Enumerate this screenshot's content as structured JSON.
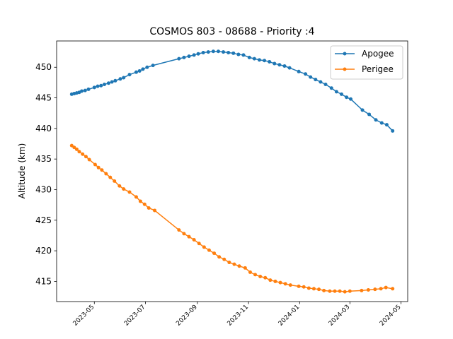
{
  "chart_data": {
    "type": "line",
    "title": "COSMOS 803 - 08688 - Priority :4",
    "xlabel": "",
    "ylabel": "Altitude (km)",
    "x_ticks": [
      "2023-05",
      "2023-07",
      "2023-09",
      "2023-11",
      "2024-01",
      "2024-03",
      "2024-05"
    ],
    "y_ticks": [
      415,
      420,
      425,
      430,
      435,
      440,
      445,
      450
    ],
    "xlim": [
      "2023-03-17",
      "2024-05-09"
    ],
    "ylim": [
      411.7,
      454.3
    ],
    "grid": false,
    "legend_position": "top-right",
    "series": [
      {
        "name": "Apogee",
        "color": "#1f77b4",
        "points": [
          [
            "2023-04-04",
            445.6
          ],
          [
            "2023-04-07",
            445.7
          ],
          [
            "2023-04-10",
            445.8
          ],
          [
            "2023-04-13",
            445.9
          ],
          [
            "2023-04-16",
            446.1
          ],
          [
            "2023-04-20",
            446.2
          ],
          [
            "2023-04-24",
            446.4
          ],
          [
            "2023-05-01",
            446.7
          ],
          [
            "2023-05-05",
            446.9
          ],
          [
            "2023-05-09",
            447.0
          ],
          [
            "2023-05-13",
            447.2
          ],
          [
            "2023-05-18",
            447.4
          ],
          [
            "2023-05-22",
            447.6
          ],
          [
            "2023-05-26",
            447.8
          ],
          [
            "2023-06-01",
            448.1
          ],
          [
            "2023-06-05",
            448.3
          ],
          [
            "2023-06-12",
            448.8
          ],
          [
            "2023-06-20",
            449.2
          ],
          [
            "2023-06-24",
            449.4
          ],
          [
            "2023-06-28",
            449.7
          ],
          [
            "2023-07-03",
            450.0
          ],
          [
            "2023-07-10",
            450.3
          ],
          [
            "2023-08-10",
            451.4
          ],
          [
            "2023-08-16",
            451.6
          ],
          [
            "2023-08-22",
            451.8
          ],
          [
            "2023-08-28",
            452.0
          ],
          [
            "2023-09-02",
            452.2
          ],
          [
            "2023-09-08",
            452.4
          ],
          [
            "2023-09-14",
            452.5
          ],
          [
            "2023-09-20",
            452.6
          ],
          [
            "2023-09-26",
            452.6
          ],
          [
            "2023-10-02",
            452.5
          ],
          [
            "2023-10-08",
            452.4
          ],
          [
            "2023-10-14",
            452.3
          ],
          [
            "2023-10-20",
            452.1
          ],
          [
            "2023-10-26",
            452.0
          ],
          [
            "2023-11-02",
            451.6
          ],
          [
            "2023-11-08",
            451.4
          ],
          [
            "2023-11-14",
            451.2
          ],
          [
            "2023-11-20",
            451.1
          ],
          [
            "2023-11-26",
            450.9
          ],
          [
            "2023-12-02",
            450.6
          ],
          [
            "2023-12-08",
            450.4
          ],
          [
            "2023-12-14",
            450.2
          ],
          [
            "2023-12-20",
            449.9
          ],
          [
            "2023-12-31",
            449.3
          ],
          [
            "2024-01-08",
            448.9
          ],
          [
            "2024-01-14",
            448.4
          ],
          [
            "2024-01-20",
            448.0
          ],
          [
            "2024-01-26",
            447.6
          ],
          [
            "2024-02-01",
            447.2
          ],
          [
            "2024-02-08",
            446.6
          ],
          [
            "2024-02-14",
            446.0
          ],
          [
            "2024-02-20",
            445.6
          ],
          [
            "2024-02-26",
            445.1
          ],
          [
            "2024-03-02",
            444.8
          ],
          [
            "2024-03-16",
            443.0
          ],
          [
            "2024-03-24",
            442.3
          ],
          [
            "2024-04-01",
            441.4
          ],
          [
            "2024-04-08",
            440.9
          ],
          [
            "2024-04-14",
            440.6
          ],
          [
            "2024-04-21",
            439.6
          ]
        ]
      },
      {
        "name": "Perigee",
        "color": "#ff7f0e",
        "points": [
          [
            "2023-04-04",
            437.2
          ],
          [
            "2023-04-07",
            436.9
          ],
          [
            "2023-04-10",
            436.6
          ],
          [
            "2023-04-13",
            436.2
          ],
          [
            "2023-04-17",
            435.8
          ],
          [
            "2023-04-21",
            435.4
          ],
          [
            "2023-04-25",
            434.9
          ],
          [
            "2023-05-02",
            434.1
          ],
          [
            "2023-05-06",
            433.6
          ],
          [
            "2023-05-10",
            433.2
          ],
          [
            "2023-05-15",
            432.6
          ],
          [
            "2023-05-20",
            432.0
          ],
          [
            "2023-05-25",
            431.4
          ],
          [
            "2023-05-31",
            430.6
          ],
          [
            "2023-06-05",
            430.1
          ],
          [
            "2023-06-12",
            429.6
          ],
          [
            "2023-06-20",
            428.8
          ],
          [
            "2023-06-25",
            428.1
          ],
          [
            "2023-06-30",
            427.6
          ],
          [
            "2023-07-05",
            427.0
          ],
          [
            "2023-07-12",
            426.6
          ],
          [
            "2023-08-10",
            423.4
          ],
          [
            "2023-08-16",
            422.8
          ],
          [
            "2023-08-22",
            422.3
          ],
          [
            "2023-08-28",
            421.8
          ],
          [
            "2023-09-03",
            421.2
          ],
          [
            "2023-09-09",
            420.6
          ],
          [
            "2023-09-15",
            420.1
          ],
          [
            "2023-09-21",
            419.6
          ],
          [
            "2023-09-27",
            419.0
          ],
          [
            "2023-10-03",
            418.6
          ],
          [
            "2023-10-09",
            418.1
          ],
          [
            "2023-10-15",
            417.8
          ],
          [
            "2023-10-21",
            417.5
          ],
          [
            "2023-10-28",
            417.2
          ],
          [
            "2023-11-03",
            416.5
          ],
          [
            "2023-11-09",
            416.1
          ],
          [
            "2023-11-15",
            415.8
          ],
          [
            "2023-11-21",
            415.6
          ],
          [
            "2023-11-27",
            415.2
          ],
          [
            "2023-12-03",
            415.0
          ],
          [
            "2023-12-09",
            414.8
          ],
          [
            "2023-12-15",
            414.6
          ],
          [
            "2023-12-21",
            414.4
          ],
          [
            "2023-12-31",
            414.2
          ],
          [
            "2024-01-06",
            414.1
          ],
          [
            "2024-01-12",
            413.9
          ],
          [
            "2024-01-18",
            413.8
          ],
          [
            "2024-01-24",
            413.7
          ],
          [
            "2024-01-30",
            413.5
          ],
          [
            "2024-02-06",
            413.4
          ],
          [
            "2024-02-12",
            413.4
          ],
          [
            "2024-02-18",
            413.4
          ],
          [
            "2024-02-24",
            413.3
          ],
          [
            "2024-03-01",
            413.4
          ],
          [
            "2024-03-15",
            413.5
          ],
          [
            "2024-03-23",
            413.6
          ],
          [
            "2024-03-31",
            413.7
          ],
          [
            "2024-04-07",
            413.8
          ],
          [
            "2024-04-13",
            414.0
          ],
          [
            "2024-04-21",
            413.8
          ]
        ]
      }
    ]
  }
}
